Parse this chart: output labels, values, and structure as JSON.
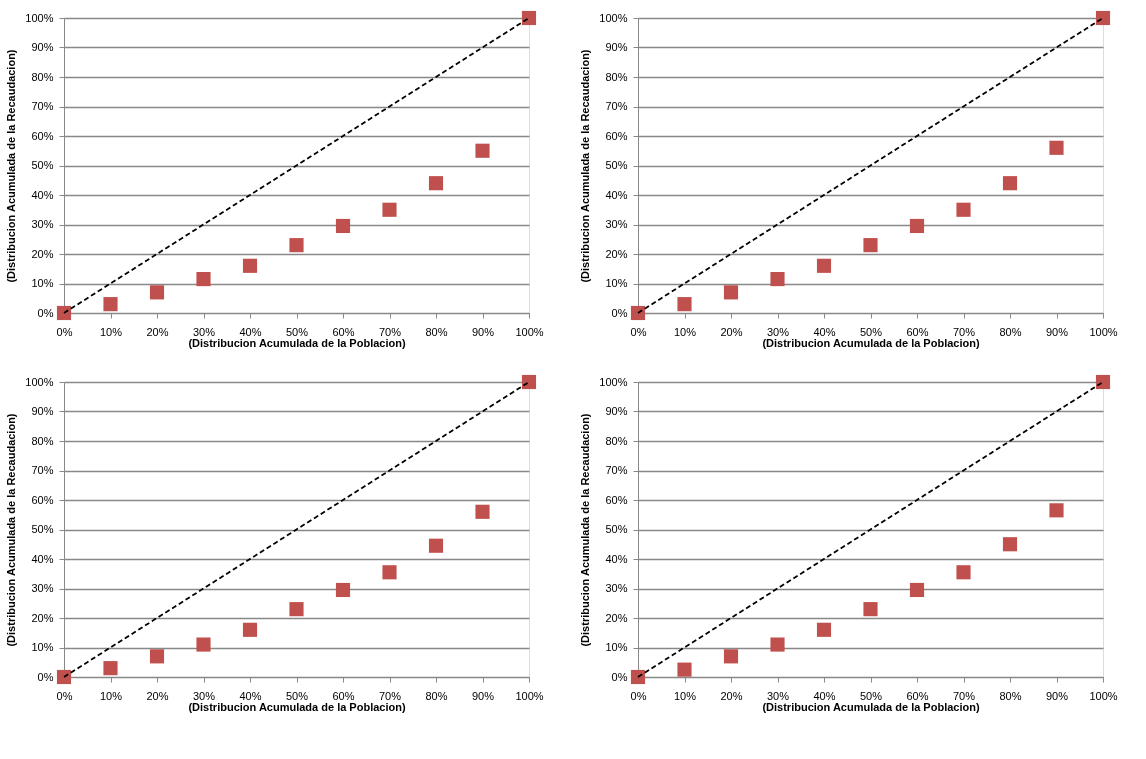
{
  "chart_data": [
    {
      "type": "scatter",
      "xlabel": "(Distribucion Acumulada de la Poblacion)",
      "ylabel": "(Distribucion Acumulada de la Recaudacion)",
      "xlim": [
        0,
        100
      ],
      "ylim": [
        0,
        100
      ],
      "xticks": [
        {
          "value": 0,
          "label": "0%"
        },
        {
          "value": 10,
          "label": "10%"
        },
        {
          "value": 20,
          "label": "20%"
        },
        {
          "value": 30,
          "label": "30%"
        },
        {
          "value": 40,
          "label": "40%"
        },
        {
          "value": 50,
          "label": "50%"
        },
        {
          "value": 60,
          "label": "60%"
        },
        {
          "value": 70,
          "label": "70%"
        },
        {
          "value": 80,
          "label": "80%"
        },
        {
          "value": 90,
          "label": "90%"
        },
        {
          "value": 100,
          "label": "100%"
        }
      ],
      "yticks": [
        {
          "value": 0,
          "label": "0%"
        },
        {
          "value": 10,
          "label": "10%"
        },
        {
          "value": 20,
          "label": "20%"
        },
        {
          "value": 30,
          "label": "30%"
        },
        {
          "value": 40,
          "label": "40%"
        },
        {
          "value": 50,
          "label": "50%"
        },
        {
          "value": 60,
          "label": "60%"
        },
        {
          "value": 70,
          "label": "70%"
        },
        {
          "value": 80,
          "label": "80%"
        },
        {
          "value": 90,
          "label": "90%"
        },
        {
          "value": 100,
          "label": "100%"
        }
      ],
      "grid": "y",
      "legend": false,
      "x": [
        0,
        10,
        20,
        30,
        40,
        50,
        60,
        70,
        80,
        90,
        100
      ],
      "series": [
        {
          "color": "#c0504d",
          "marker": "square",
          "values": [
            0,
            3,
            7,
            11.5,
            16,
            23,
            29.5,
            35,
            44,
            55,
            100
          ]
        },
        {
          "type": "line",
          "color": "#000000",
          "line_style": "dashed",
          "values": [
            0,
            10,
            20,
            30,
            40,
            50,
            60,
            70,
            80,
            90,
            100
          ]
        }
      ]
    },
    {
      "type": "scatter",
      "xlabel": "(Distribucion Acumulada de la Poblacion)",
      "ylabel": "(Distribucion Acumulada de la Recaudacion)",
      "xlim": [
        0,
        100
      ],
      "ylim": [
        0,
        100
      ],
      "xticks": [
        {
          "value": 0,
          "label": "0%"
        },
        {
          "value": 10,
          "label": "10%"
        },
        {
          "value": 20,
          "label": "20%"
        },
        {
          "value": 30,
          "label": "30%"
        },
        {
          "value": 40,
          "label": "40%"
        },
        {
          "value": 50,
          "label": "50%"
        },
        {
          "value": 60,
          "label": "60%"
        },
        {
          "value": 70,
          "label": "70%"
        },
        {
          "value": 80,
          "label": "80%"
        },
        {
          "value": 90,
          "label": "90%"
        },
        {
          "value": 100,
          "label": "100%"
        }
      ],
      "yticks": [
        {
          "value": 0,
          "label": "0%"
        },
        {
          "value": 10,
          "label": "10%"
        },
        {
          "value": 20,
          "label": "20%"
        },
        {
          "value": 30,
          "label": "30%"
        },
        {
          "value": 40,
          "label": "40%"
        },
        {
          "value": 50,
          "label": "50%"
        },
        {
          "value": 60,
          "label": "60%"
        },
        {
          "value": 70,
          "label": "70%"
        },
        {
          "value": 80,
          "label": "80%"
        },
        {
          "value": 90,
          "label": "90%"
        },
        {
          "value": 100,
          "label": "100%"
        }
      ],
      "grid": "y",
      "legend": false,
      "x": [
        0,
        10,
        20,
        30,
        40,
        50,
        60,
        70,
        80,
        90,
        100
      ],
      "series": [
        {
          "color": "#c0504d",
          "marker": "square",
          "values": [
            0,
            3,
            7,
            11.5,
            16,
            23,
            29.5,
            35,
            44,
            56,
            100
          ]
        },
        {
          "type": "line",
          "color": "#000000",
          "line_style": "dashed",
          "values": [
            0,
            10,
            20,
            30,
            40,
            50,
            60,
            70,
            80,
            90,
            100
          ]
        }
      ]
    },
    {
      "type": "scatter",
      "xlabel": "(Distribucion Acumulada de la Poblacion)",
      "ylabel": "(Distribucion Acumulada de la Recaudacion)",
      "xlim": [
        0,
        100
      ],
      "ylim": [
        0,
        100
      ],
      "xticks": [
        {
          "value": 0,
          "label": "0%"
        },
        {
          "value": 10,
          "label": "10%"
        },
        {
          "value": 20,
          "label": "20%"
        },
        {
          "value": 30,
          "label": "30%"
        },
        {
          "value": 40,
          "label": "40%"
        },
        {
          "value": 50,
          "label": "50%"
        },
        {
          "value": 60,
          "label": "60%"
        },
        {
          "value": 70,
          "label": "70%"
        },
        {
          "value": 80,
          "label": "80%"
        },
        {
          "value": 90,
          "label": "90%"
        },
        {
          "value": 100,
          "label": "100%"
        }
      ],
      "yticks": [
        {
          "value": 0,
          "label": "0%"
        },
        {
          "value": 10,
          "label": "10%"
        },
        {
          "value": 20,
          "label": "20%"
        },
        {
          "value": 30,
          "label": "30%"
        },
        {
          "value": 40,
          "label": "40%"
        },
        {
          "value": 50,
          "label": "50%"
        },
        {
          "value": 60,
          "label": "60%"
        },
        {
          "value": 70,
          "label": "70%"
        },
        {
          "value": 80,
          "label": "80%"
        },
        {
          "value": 90,
          "label": "90%"
        },
        {
          "value": 100,
          "label": "100%"
        }
      ],
      "grid": "y",
      "legend": false,
      "x": [
        0,
        10,
        20,
        30,
        40,
        50,
        60,
        70,
        80,
        90,
        100
      ],
      "series": [
        {
          "color": "#c0504d",
          "marker": "square",
          "values": [
            0,
            3,
            7,
            11,
            16,
            23,
            29.5,
            35.5,
            44.5,
            56,
            100
          ]
        },
        {
          "type": "line",
          "color": "#000000",
          "line_style": "dashed",
          "values": [
            0,
            10,
            20,
            30,
            40,
            50,
            60,
            70,
            80,
            90,
            100
          ]
        }
      ]
    },
    {
      "type": "scatter",
      "xlabel": "(Distribucion Acumulada de la Poblacion)",
      "ylabel": "(Distribucion Acumulada de la Recaudacion)",
      "xlim": [
        0,
        100
      ],
      "ylim": [
        0,
        100
      ],
      "xticks": [
        {
          "value": 0,
          "label": "0%"
        },
        {
          "value": 10,
          "label": "10%"
        },
        {
          "value": 20,
          "label": "20%"
        },
        {
          "value": 30,
          "label": "30%"
        },
        {
          "value": 40,
          "label": "40%"
        },
        {
          "value": 50,
          "label": "50%"
        },
        {
          "value": 60,
          "label": "60%"
        },
        {
          "value": 70,
          "label": "70%"
        },
        {
          "value": 80,
          "label": "80%"
        },
        {
          "value": 90,
          "label": "90%"
        },
        {
          "value": 100,
          "label": "100%"
        }
      ],
      "yticks": [
        {
          "value": 0,
          "label": "0%"
        },
        {
          "value": 10,
          "label": "10%"
        },
        {
          "value": 20,
          "label": "20%"
        },
        {
          "value": 30,
          "label": "30%"
        },
        {
          "value": 40,
          "label": "40%"
        },
        {
          "value": 50,
          "label": "50%"
        },
        {
          "value": 60,
          "label": "60%"
        },
        {
          "value": 70,
          "label": "70%"
        },
        {
          "value": 80,
          "label": "80%"
        },
        {
          "value": 90,
          "label": "90%"
        },
        {
          "value": 100,
          "label": "100%"
        }
      ],
      "grid": "y",
      "legend": false,
      "x": [
        0,
        10,
        20,
        30,
        40,
        50,
        60,
        70,
        80,
        90,
        100
      ],
      "series": [
        {
          "color": "#c0504d",
          "marker": "square",
          "values": [
            0,
            2.5,
            7,
            11,
            16,
            23,
            29.5,
            35.5,
            45,
            56.5,
            100
          ]
        },
        {
          "type": "line",
          "color": "#000000",
          "line_style": "dashed",
          "values": [
            0,
            10,
            20,
            30,
            40,
            50,
            60,
            70,
            80,
            90,
            100
          ]
        }
      ]
    }
  ]
}
